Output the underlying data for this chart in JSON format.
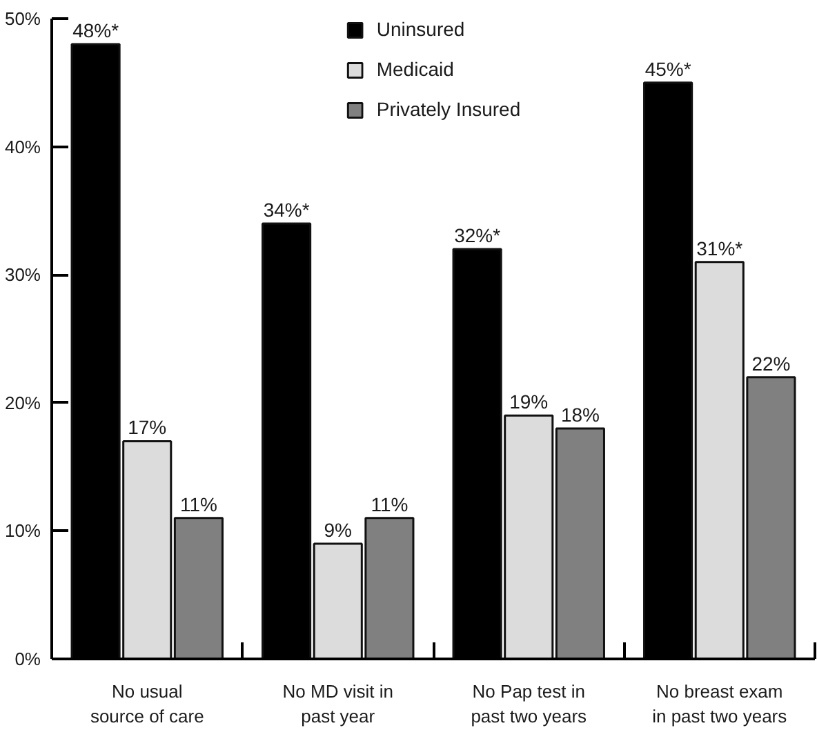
{
  "chart_data": {
    "type": "bar",
    "categories": [
      "No usual\nsource of care",
      "No MD visit in\npast year",
      "No Pap test in\npast two years",
      "No breast exam\nin past two years"
    ],
    "series": [
      {
        "name": "Uninsured",
        "color": "#000000",
        "values": [
          48,
          34,
          32,
          45
        ],
        "value_labels": [
          "48%*",
          "34%*",
          "32%*",
          "45%*"
        ]
      },
      {
        "name": "Medicaid",
        "color": "#dcdcdc",
        "values": [
          17,
          9,
          19,
          31
        ],
        "value_labels": [
          "17%",
          "9%",
          "19%",
          "31%*"
        ]
      },
      {
        "name": "Privately Insured",
        "color": "#808080",
        "values": [
          11,
          11,
          18,
          22
        ],
        "value_labels": [
          "11%",
          "11%",
          "18%",
          "22%"
        ]
      }
    ],
    "ylim": [
      0,
      50
    ],
    "yticks": [
      {
        "value": 0,
        "label": "0%"
      },
      {
        "value": 10,
        "label": "10%"
      },
      {
        "value": 20,
        "label": "20%"
      },
      {
        "value": 30,
        "label": "30%"
      },
      {
        "value": 40,
        "label": "40%"
      },
      {
        "value": 50,
        "label": "50%"
      }
    ],
    "legend": "top",
    "grid": false
  }
}
